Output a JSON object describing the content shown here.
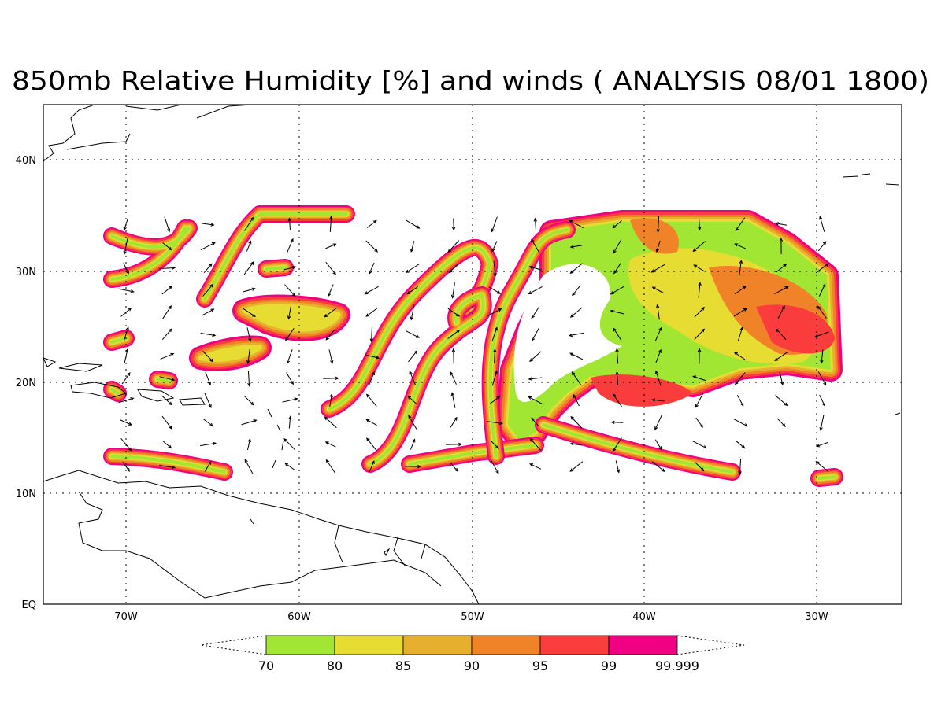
{
  "title": "850mb Relative Humidity [%] and winds ( ANALYSIS 08/01 1800)",
  "map": {
    "lon_labels": [
      "70W",
      "60W",
      "50W",
      "40W",
      "30W"
    ],
    "lat_labels": [
      "EQ",
      "10N",
      "20N",
      "30N",
      "40N"
    ],
    "grid": true
  },
  "colorbar": {
    "levels": [
      70,
      80,
      85,
      90,
      95,
      99,
      99.999
    ],
    "colors": [
      "#a0e632",
      "#e6dc32",
      "#e6af2d",
      "#f08228",
      "#fa3c3c",
      "#f00082"
    ]
  }
}
